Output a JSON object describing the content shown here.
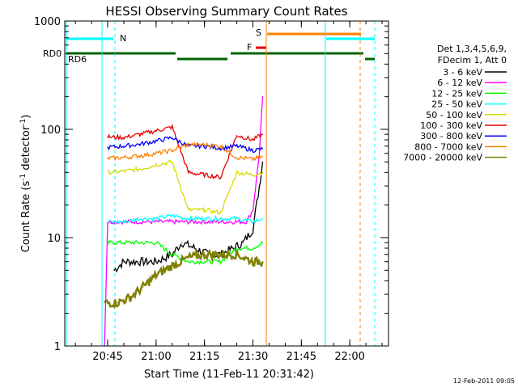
{
  "chart_data": {
    "type": "line",
    "title": "HESSI Observing Summary Count Rates",
    "xlabel": "Start Time (11-Feb-11 20:31:42)",
    "ylabel_main": "Count Rate (s",
    "ylabel_sup1": "-1",
    "ylabel_mid": " detector",
    "ylabel_sup2": "-1",
    "ylabel_end": ")",
    "timestamp": "12-Feb-2011 09:05",
    "x_range_minutes": [
      "20:31:42",
      "22:12"
    ],
    "y_scale": "log",
    "ylim": [
      1,
      1000
    ],
    "x_ticks": [
      "20:45",
      "21:00",
      "21:15",
      "21:30",
      "21:45",
      "22:00"
    ],
    "y_ticks": [
      "1",
      "10",
      "100",
      "1000"
    ],
    "legend": {
      "header1": "Det 1,3,4,5,6,9,",
      "header2": "FDecim 1, Att 0",
      "entries": [
        {
          "label": "3 - 6 keV",
          "color": "#000000"
        },
        {
          "label": "6 - 12 keV",
          "color": "#ff00ff"
        },
        {
          "label": "12 - 25 keV",
          "color": "#00ff00"
        },
        {
          "label": "25 - 50 keV",
          "color": "#00ffff"
        },
        {
          "label": "50 - 100 keV",
          "color": "#d8d800"
        },
        {
          "label": "100 - 300 keV",
          "color": "#e00000"
        },
        {
          "label": "300 - 800 keV",
          "color": "#0000ff"
        },
        {
          "label": "800 - 7000 keV",
          "color": "#ff8000"
        },
        {
          "label": "7000 - 20000 keV",
          "color": "#808000"
        }
      ]
    },
    "flag_labels": {
      "night": "N",
      "saa": "S",
      "flare": "F",
      "rd0": "RD0",
      "rd6": "RD6"
    },
    "series": [
      {
        "name": "3 - 6 keV",
        "color": "#000000",
        "x": [
          "20:47",
          "20:50",
          "20:55",
          "21:00",
          "21:05",
          "21:08",
          "21:12",
          "21:16",
          "21:20",
          "21:24",
          "21:27",
          "21:30",
          "21:32",
          "21:33"
        ],
        "y": [
          5,
          6,
          6,
          6,
          7,
          9,
          8,
          7,
          7,
          8,
          9,
          12,
          30,
          50
        ]
      },
      {
        "name": "6 - 12 keV",
        "color": "#ff00ff",
        "x": [
          "20:44",
          "20:45",
          "21:28",
          "21:30",
          "21:32",
          "21:33"
        ],
        "y": [
          1,
          14,
          14,
          18,
          60,
          200
        ]
      },
      {
        "name": "12 - 25 keV",
        "color": "#00ff00",
        "x": [
          "20:45",
          "20:50",
          "20:55",
          "21:00",
          "21:05",
          "21:10",
          "21:15",
          "21:20",
          "21:25",
          "21:30",
          "21:33"
        ],
        "y": [
          9,
          9,
          9,
          9,
          7,
          6,
          6,
          6,
          8,
          8,
          9
        ]
      },
      {
        "name": "25 - 50 keV",
        "color": "#00ffff",
        "x": [
          "20:45",
          "20:50",
          "20:55",
          "21:00",
          "21:05",
          "21:10",
          "21:15",
          "21:20",
          "21:25",
          "21:30",
          "21:33"
        ],
        "y": [
          14,
          14,
          15,
          15,
          16,
          15,
          15,
          15,
          15,
          14,
          15
        ]
      },
      {
        "name": "50 - 100 keV",
        "color": "#d8d800",
        "x": [
          "20:45",
          "20:50",
          "20:55",
          "21:00",
          "21:05",
          "21:10",
          "21:15",
          "21:20",
          "21:25",
          "21:30",
          "21:33"
        ],
        "y": [
          40,
          41,
          43,
          47,
          50,
          18,
          18,
          17,
          40,
          38,
          40
        ]
      },
      {
        "name": "100 - 300 keV",
        "color": "#e00000",
        "x": [
          "20:45",
          "20:50",
          "20:55",
          "21:00",
          "21:05",
          "21:10",
          "21:15",
          "21:20",
          "21:25",
          "21:30",
          "21:33"
        ],
        "y": [
          85,
          84,
          90,
          97,
          105,
          40,
          38,
          36,
          88,
          80,
          90
        ]
      },
      {
        "name": "300 - 800 keV",
        "color": "#0000ff",
        "x": [
          "20:45",
          "20:50",
          "20:55",
          "21:00",
          "21:05",
          "21:10",
          "21:15",
          "21:20",
          "21:25",
          "21:30",
          "21:33"
        ],
        "y": [
          68,
          70,
          73,
          78,
          84,
          70,
          70,
          67,
          70,
          64,
          66
        ]
      },
      {
        "name": "800 - 7000 keV",
        "color": "#ff8000",
        "x": [
          "20:45",
          "20:50",
          "20:55",
          "21:00",
          "21:05",
          "21:10",
          "21:15",
          "21:20",
          "21:25",
          "21:30",
          "21:33"
        ],
        "y": [
          54,
          55,
          57,
          60,
          64,
          72,
          72,
          70,
          55,
          53,
          56
        ]
      },
      {
        "name": "7000 - 20000 keV",
        "color": "#808000",
        "x": [
          "20:44",
          "20:48",
          "20:52",
          "20:56",
          "21:00",
          "21:05",
          "21:10",
          "21:15",
          "21:20",
          "21:25",
          "21:30",
          "21:33"
        ],
        "y": [
          2.5,
          2.5,
          2.8,
          3.5,
          4.5,
          5.5,
          6.5,
          7,
          7,
          7,
          6,
          6
        ]
      }
    ]
  }
}
